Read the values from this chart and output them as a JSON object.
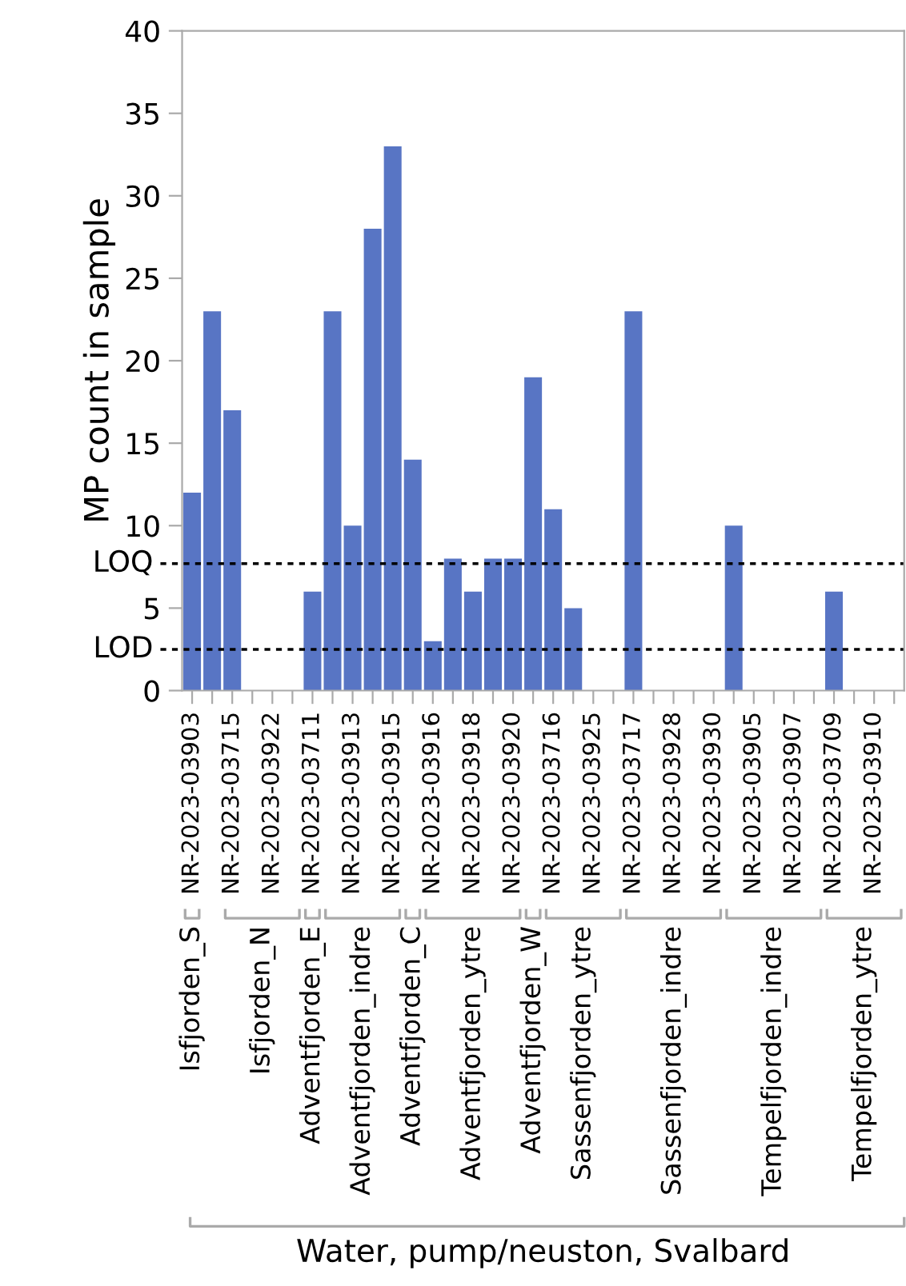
{
  "chart_data": {
    "type": "bar",
    "ylabel": "MP count in sample",
    "categories": [
      "NR-2023-03903",
      null,
      "NR-2023-03715",
      null,
      "NR-2023-03922",
      null,
      "NR-2023-03711",
      null,
      "NR-2023-03913",
      null,
      "NR-2023-03915",
      null,
      "NR-2023-03916",
      null,
      "NR-2023-03918",
      null,
      "NR-2023-03920",
      null,
      "NR-2023-03716",
      null,
      "NR-2023-03925",
      null,
      "NR-2023-03717",
      null,
      "NR-2023-03928",
      null,
      "NR-2023-03930",
      null,
      "NR-2023-03905",
      null,
      "NR-2023-03907",
      null,
      "NR-2023-03709",
      null,
      "NR-2023-03910",
      null
    ],
    "values": [
      12,
      23,
      17,
      0,
      0,
      0,
      6,
      23,
      10,
      28,
      33,
      14,
      3,
      8,
      6,
      8,
      8,
      19,
      11,
      5,
      0,
      0,
      23,
      0,
      0,
      0,
      0,
      10,
      0,
      0,
      0,
      0,
      6,
      0,
      0,
      0
    ],
    "color": "#5875c4",
    "ylim": [
      0,
      40
    ],
    "yticks": [
      0,
      5,
      10,
      15,
      20,
      25,
      30,
      35,
      40
    ],
    "ref_lines": [
      {
        "axis": "y",
        "value": 7.7,
        "label": "LOQ",
        "line_style": "dotted",
        "color": "#000000"
      },
      {
        "axis": "y",
        "value": 2.5,
        "label": "LOD",
        "line_style": "dotted",
        "color": "#000000"
      }
    ],
    "annotations": [
      "Isfjorden_S",
      "Isfjorden_N",
      "Adventfjorden_E",
      "Adventfjorden_indre",
      "Adventfjorden_C",
      "Adventfjorden_ytre",
      "Adventfjorden_W",
      "Sassenfjorden_ytre",
      "Sassenfjorden_indre",
      "Tempelfjorden_indre",
      "Tempelfjorden_ytre",
      "Water, pump/neuston, Svalbard"
    ],
    "grid": false
  }
}
